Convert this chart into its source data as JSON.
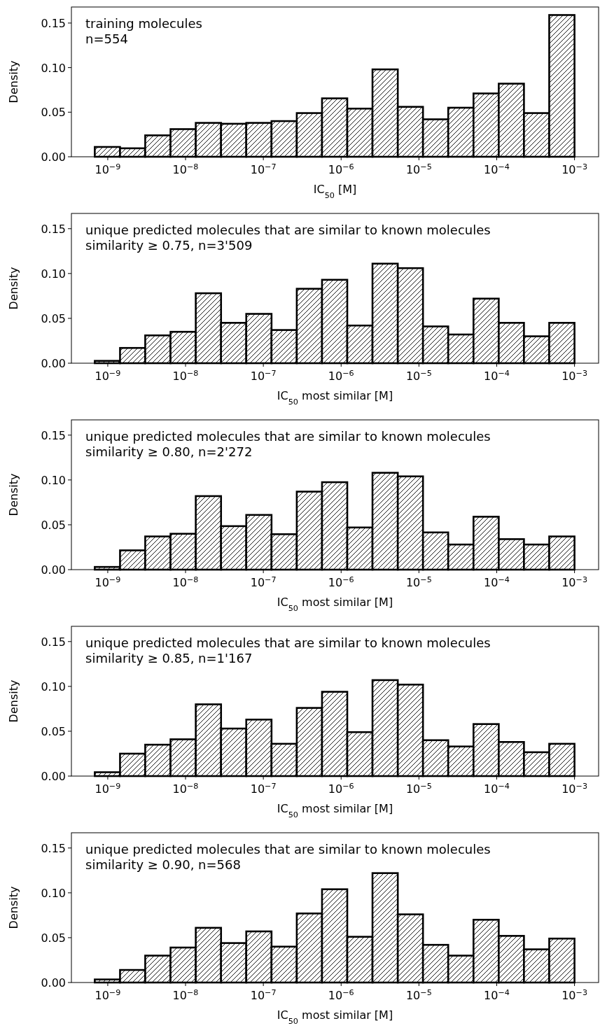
{
  "chart_data": [
    {
      "type": "histogram",
      "xlabel": "IC$_{50}$ [M]",
      "ylabel": "Density",
      "annotations": [
        "training molecules",
        "n=554"
      ],
      "color": "#000000",
      "log": "x",
      "bins": [
        6.81e-10,
        1.438e-09,
        3.03e-09,
        6.41e-09,
        1.353e-08,
        2.86e-08,
        6.03e-08,
        1.274e-07,
        2.69e-07,
        5.68e-07,
        1.199e-06,
        2.53e-06,
        5.35e-06,
        1.128e-05,
        2.38e-05,
        5.03e-05,
        0.0001062,
        0.000224,
        0.000473,
        0.001
      ],
      "values": [
        0.011,
        0.0095,
        0.024,
        0.031,
        0.038,
        0.037,
        0.038,
        0.04,
        0.049,
        0.0655,
        0.054,
        0.098,
        0.056,
        0.042,
        0.055,
        0.071,
        0.082,
        0.049,
        0.159
      ],
      "xlim": [
        3.41e-10,
        0.00204
      ],
      "xticks": [
        {
          "value": 1e-09,
          "label": "10$^{−9}$"
        },
        {
          "value": 1e-08,
          "label": "10$^{−8}$"
        },
        {
          "value": 1e-07,
          "label": "10$^{−7}$"
        },
        {
          "value": 1e-06,
          "label": "10$^{−6}$"
        },
        {
          "value": 1e-05,
          "label": "10$^{−5}$"
        },
        {
          "value": 0.0001,
          "label": "10$^{−4}$"
        },
        {
          "value": 0.001,
          "label": "10$^{−3}$"
        }
      ],
      "ylim": [
        0,
        0.168
      ],
      "yticks": [
        {
          "value": 0,
          "label": "0.00"
        },
        {
          "value": 0.05,
          "label": "0.05"
        },
        {
          "value": 0.1,
          "label": "0.10"
        },
        {
          "value": 0.15,
          "label": "0.15"
        }
      ]
    },
    {
      "type": "histogram",
      "xlabel": "IC$_{50}$ most similar [M]",
      "ylabel": "Density",
      "annotations": [
        "unique predicted molecules that are similar to known molecules",
        "similarity ≥ 0.75, n=3'509"
      ],
      "color": "#000000",
      "log": "x",
      "bins": [
        6.81e-10,
        1.438e-09,
        3.03e-09,
        6.41e-09,
        1.353e-08,
        2.86e-08,
        6.03e-08,
        1.274e-07,
        2.69e-07,
        5.68e-07,
        1.199e-06,
        2.53e-06,
        5.35e-06,
        1.128e-05,
        2.38e-05,
        5.03e-05,
        0.0001062,
        0.000224,
        0.000473,
        0.001
      ],
      "values": [
        0.0026,
        0.017,
        0.031,
        0.035,
        0.078,
        0.045,
        0.055,
        0.037,
        0.083,
        0.093,
        0.042,
        0.111,
        0.106,
        0.041,
        0.032,
        0.072,
        0.045,
        0.03,
        0.045
      ],
      "xlim": [
        3.41e-10,
        0.00204
      ],
      "xticks": [
        {
          "value": 1e-09,
          "label": "10$^{−9}$"
        },
        {
          "value": 1e-08,
          "label": "10$^{−8}$"
        },
        {
          "value": 1e-07,
          "label": "10$^{−7}$"
        },
        {
          "value": 1e-06,
          "label": "10$^{−6}$"
        },
        {
          "value": 1e-05,
          "label": "10$^{−5}$"
        },
        {
          "value": 0.0001,
          "label": "10$^{−4}$"
        },
        {
          "value": 0.001,
          "label": "10$^{−3}$"
        }
      ],
      "ylim": [
        0,
        0.167
      ],
      "yticks": [
        {
          "value": 0,
          "label": "0.00"
        },
        {
          "value": 0.05,
          "label": "0.05"
        },
        {
          "value": 0.1,
          "label": "0.10"
        },
        {
          "value": 0.15,
          "label": "0.15"
        }
      ]
    },
    {
      "type": "histogram",
      "xlabel": "IC$_{50}$ most similar [M]",
      "ylabel": "Density",
      "annotations": [
        "unique predicted molecules that are similar to known molecules",
        "similarity ≥ 0.80, n=2'272"
      ],
      "color": "#000000",
      "log": "x",
      "bins": [
        6.81e-10,
        1.438e-09,
        3.03e-09,
        6.41e-09,
        1.353e-08,
        2.86e-08,
        6.03e-08,
        1.274e-07,
        2.69e-07,
        5.68e-07,
        1.199e-06,
        2.53e-06,
        5.35e-06,
        1.128e-05,
        2.38e-05,
        5.03e-05,
        0.0001062,
        0.000224,
        0.000473,
        0.001
      ],
      "values": [
        0.003,
        0.0215,
        0.037,
        0.04,
        0.082,
        0.0485,
        0.061,
        0.0395,
        0.087,
        0.0975,
        0.047,
        0.108,
        0.104,
        0.0415,
        0.028,
        0.059,
        0.034,
        0.028,
        0.037
      ],
      "xlim": [
        3.41e-10,
        0.00204
      ],
      "xticks": [
        {
          "value": 1e-09,
          "label": "10$^{−9}$"
        },
        {
          "value": 1e-08,
          "label": "10$^{−8}$"
        },
        {
          "value": 1e-07,
          "label": "10$^{−7}$"
        },
        {
          "value": 1e-06,
          "label": "10$^{−6}$"
        },
        {
          "value": 1e-05,
          "label": "10$^{−5}$"
        },
        {
          "value": 0.0001,
          "label": "10$^{−4}$"
        },
        {
          "value": 0.001,
          "label": "10$^{−3}$"
        }
      ],
      "ylim": [
        0,
        0.167
      ],
      "yticks": [
        {
          "value": 0,
          "label": "0.00"
        },
        {
          "value": 0.05,
          "label": "0.05"
        },
        {
          "value": 0.1,
          "label": "0.10"
        },
        {
          "value": 0.15,
          "label": "0.15"
        }
      ]
    },
    {
      "type": "histogram",
      "xlabel": "IC$_{50}$ most similar [M]",
      "ylabel": "Density",
      "annotations": [
        "unique predicted molecules that are similar to known molecules",
        "similarity ≥ 0.85, n=1'167"
      ],
      "color": "#000000",
      "log": "x",
      "bins": [
        6.81e-10,
        1.438e-09,
        3.03e-09,
        6.41e-09,
        1.353e-08,
        2.86e-08,
        6.03e-08,
        1.274e-07,
        2.69e-07,
        5.68e-07,
        1.199e-06,
        2.53e-06,
        5.35e-06,
        1.128e-05,
        2.38e-05,
        5.03e-05,
        0.0001062,
        0.000224,
        0.000473,
        0.001
      ],
      "values": [
        0.0043,
        0.025,
        0.035,
        0.041,
        0.08,
        0.053,
        0.063,
        0.036,
        0.076,
        0.094,
        0.049,
        0.107,
        0.102,
        0.04,
        0.033,
        0.058,
        0.038,
        0.0266,
        0.036
      ],
      "xlim": [
        3.41e-10,
        0.00204
      ],
      "xticks": [
        {
          "value": 1e-09,
          "label": "10$^{−9}$"
        },
        {
          "value": 1e-08,
          "label": "10$^{−8}$"
        },
        {
          "value": 1e-07,
          "label": "10$^{−7}$"
        },
        {
          "value": 1e-06,
          "label": "10$^{−6}$"
        },
        {
          "value": 1e-05,
          "label": "10$^{−5}$"
        },
        {
          "value": 0.0001,
          "label": "10$^{−4}$"
        },
        {
          "value": 0.001,
          "label": "10$^{−3}$"
        }
      ],
      "ylim": [
        0,
        0.167
      ],
      "yticks": [
        {
          "value": 0,
          "label": "0.00"
        },
        {
          "value": 0.05,
          "label": "0.05"
        },
        {
          "value": 0.1,
          "label": "0.10"
        },
        {
          "value": 0.15,
          "label": "0.15"
        }
      ]
    },
    {
      "type": "histogram",
      "xlabel": "IC$_{50}$ most similar [M]",
      "ylabel": "Density",
      "annotations": [
        "unique predicted molecules that are similar to known molecules",
        "similarity ≥ 0.90, n=568"
      ],
      "color": "#000000",
      "log": "x",
      "bins": [
        6.81e-10,
        1.438e-09,
        3.03e-09,
        6.41e-09,
        1.353e-08,
        2.86e-08,
        6.03e-08,
        1.274e-07,
        2.69e-07,
        5.68e-07,
        1.199e-06,
        2.53e-06,
        5.35e-06,
        1.128e-05,
        2.38e-05,
        5.03e-05,
        0.0001062,
        0.000224,
        0.000473,
        0.001
      ],
      "values": [
        0.0034,
        0.014,
        0.03,
        0.039,
        0.061,
        0.044,
        0.057,
        0.04,
        0.077,
        0.104,
        0.051,
        0.122,
        0.076,
        0.042,
        0.03,
        0.07,
        0.052,
        0.037,
        0.049
      ],
      "xlim": [
        3.41e-10,
        0.00204
      ],
      "xticks": [
        {
          "value": 1e-09,
          "label": "10$^{−9}$"
        },
        {
          "value": 1e-08,
          "label": "10$^{−8}$"
        },
        {
          "value": 1e-07,
          "label": "10$^{−7}$"
        },
        {
          "value": 1e-06,
          "label": "10$^{−6}$"
        },
        {
          "value": 1e-05,
          "label": "10$^{−5}$"
        },
        {
          "value": 0.0001,
          "label": "10$^{−4}$"
        },
        {
          "value": 0.001,
          "label": "10$^{−3}$"
        }
      ],
      "ylim": [
        0,
        0.167
      ],
      "yticks": [
        {
          "value": 0,
          "label": "0.00"
        },
        {
          "value": 0.05,
          "label": "0.05"
        },
        {
          "value": 0.1,
          "label": "0.10"
        },
        {
          "value": 0.15,
          "label": "0.15"
        }
      ]
    }
  ]
}
